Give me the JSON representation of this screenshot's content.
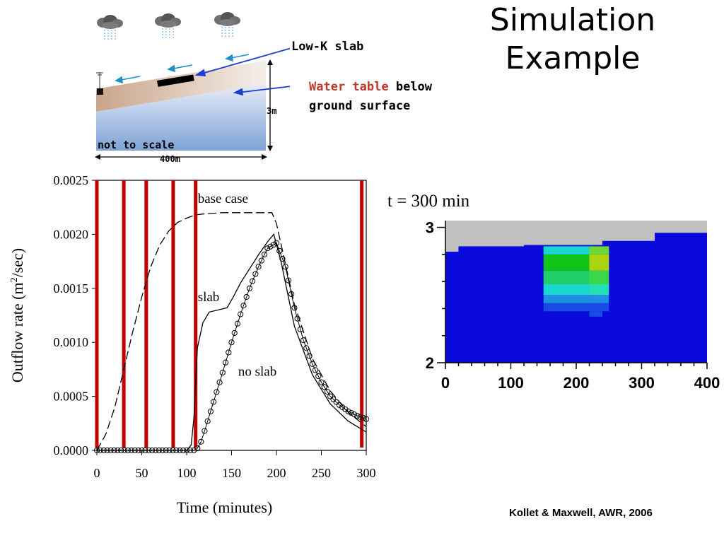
{
  "slide": {
    "title_line1": "Simulation",
    "title_line2": "Example",
    "citation": "Kollet & Maxwell, AWR, 2006"
  },
  "schematic": {
    "lowk_label": "Low-K slab",
    "wt_label_red": "Water table",
    "wt_label_rest": "below",
    "wt_label_line2": "ground surface",
    "not_to_scale": "not to scale",
    "depth_label": "3m",
    "length_label": "400m",
    "colors": {
      "soil": "#d9c3b3",
      "groundwater": "#8fb2d9",
      "slab": "#000000",
      "arrow": "#1d3fd0",
      "flow_arrow": "#1e90c8",
      "water_table_text": "#c0392b"
    }
  },
  "chart_data": [
    {
      "type": "line",
      "title": "",
      "xlabel": "Time (minutes)",
      "ylabel_main": "Outflow rate (m",
      "ylabel_sup": "2",
      "ylabel_end": "/sec)",
      "xlim": [
        0,
        300
      ],
      "ylim": [
        0,
        0.0025
      ],
      "x_ticks": [
        0,
        50,
        100,
        150,
        200,
        250,
        300
      ],
      "y_ticks": [
        0,
        0.0005,
        0.001,
        0.0015,
        0.002,
        0.0025
      ],
      "y_tick_labels": [
        "0.0000",
        "0.0005",
        "0.0010",
        "0.0015",
        "0.0020",
        "0.0025"
      ],
      "rain_markers": [
        0,
        30,
        55,
        85,
        110,
        295
      ],
      "rain_color": "#c00000",
      "annotations": [
        {
          "text": "base case",
          "x": 110,
          "y": 0.00229
        },
        {
          "text": "slab",
          "x": 110,
          "y": 0.00138
        },
        {
          "text": "no slab",
          "x": 155,
          "y": 0.00069
        }
      ],
      "series": [
        {
          "name": "base case",
          "style": "dashed",
          "x": [
            0,
            10,
            20,
            30,
            40,
            50,
            60,
            70,
            80,
            90,
            100,
            110,
            120,
            140,
            160,
            180,
            195,
            200,
            220,
            240,
            260,
            280,
            300
          ],
          "y": [
            0,
            0.00015,
            0.0004,
            0.00075,
            0.0011,
            0.00142,
            0.0017,
            0.0019,
            0.00203,
            0.00211,
            0.00215,
            0.00218,
            0.00219,
            0.0022,
            0.0022,
            0.0022,
            0.0022,
            0.0021,
            0.00135,
            0.00085,
            0.00055,
            0.00035,
            0.00022
          ]
        },
        {
          "name": "slab",
          "style": "solid",
          "x": [
            0,
            100,
            105,
            108,
            112,
            118,
            125,
            135,
            145,
            152,
            160,
            170,
            180,
            190,
            197,
            205,
            220,
            240,
            260,
            280,
            300
          ],
          "y": [
            0,
            0,
            5e-05,
            0.0003,
            0.00095,
            0.00118,
            0.00128,
            0.0013,
            0.00132,
            0.00142,
            0.00155,
            0.00168,
            0.00181,
            0.00193,
            0.002,
            0.00175,
            0.00115,
            0.0007,
            0.00043,
            0.00027,
            0.00017
          ]
        },
        {
          "name": "no slab",
          "style": "circles",
          "x": [
            0,
            50,
            100,
            108,
            112,
            116,
            120,
            130,
            140,
            150,
            160,
            170,
            180,
            190,
            200,
            210,
            220,
            230,
            240,
            250,
            260,
            270,
            280,
            290,
            300
          ],
          "y": [
            0,
            0,
            0,
            0,
            2e-05,
            8e-05,
            0.00018,
            0.00045,
            0.00072,
            0.001,
            0.00126,
            0.0015,
            0.0017,
            0.00187,
            0.00192,
            0.0017,
            0.00132,
            0.00102,
            0.0008,
            0.00063,
            0.0005,
            0.00042,
            0.00036,
            0.00032,
            0.00029
          ]
        }
      ]
    },
    {
      "type": "heatmap",
      "title": "t = 300 min",
      "x_ticks": [
        0,
        100,
        200,
        300,
        400
      ],
      "y_ticks": [
        2,
        3
      ],
      "xlim": [
        0,
        400
      ],
      "ylim": [
        2,
        3.05
      ],
      "surface_profile": {
        "x": [
          0,
          20,
          120,
          240,
          320,
          400
        ],
        "z": [
          2.82,
          2.86,
          2.87,
          2.9,
          2.96,
          2.96
        ]
      },
      "colors": {
        "background": "#0a0adc",
        "air": "#c0c0c0"
      },
      "plume_cells": [
        {
          "x0": 150,
          "x1": 240,
          "z0": 2.38,
          "z1": 2.44,
          "color": "#1b4be6"
        },
        {
          "x0": 240,
          "x1": 250,
          "z0": 2.38,
          "z1": 2.44,
          "color": "#1b4be6"
        },
        {
          "x0": 220,
          "x1": 240,
          "z0": 2.34,
          "z1": 2.38,
          "color": "#1b4be6"
        },
        {
          "x0": 150,
          "x1": 240,
          "z0": 2.44,
          "z1": 2.5,
          "color": "#1f8ee3"
        },
        {
          "x0": 240,
          "x1": 250,
          "z0": 2.44,
          "z1": 2.5,
          "color": "#1f8ee3"
        },
        {
          "x0": 150,
          "x1": 220,
          "z0": 2.5,
          "z1": 2.58,
          "color": "#19d6cf"
        },
        {
          "x0": 220,
          "x1": 250,
          "z0": 2.5,
          "z1": 2.58,
          "color": "#25e0b5"
        },
        {
          "x0": 150,
          "x1": 220,
          "z0": 2.58,
          "z1": 2.68,
          "color": "#1fd06a"
        },
        {
          "x0": 220,
          "x1": 250,
          "z0": 2.58,
          "z1": 2.68,
          "color": "#3bd64a"
        },
        {
          "x0": 150,
          "x1": 220,
          "z0": 2.68,
          "z1": 2.8,
          "color": "#12c31a"
        },
        {
          "x0": 220,
          "x1": 250,
          "z0": 2.68,
          "z1": 2.8,
          "color": "#a9d40f"
        },
        {
          "x0": 150,
          "x1": 220,
          "z0": 2.8,
          "z1": 2.86,
          "color": "#19d6cf"
        },
        {
          "x0": 220,
          "x1": 250,
          "z0": 2.8,
          "z1": 2.86,
          "color": "#6fd832"
        }
      ]
    }
  ]
}
